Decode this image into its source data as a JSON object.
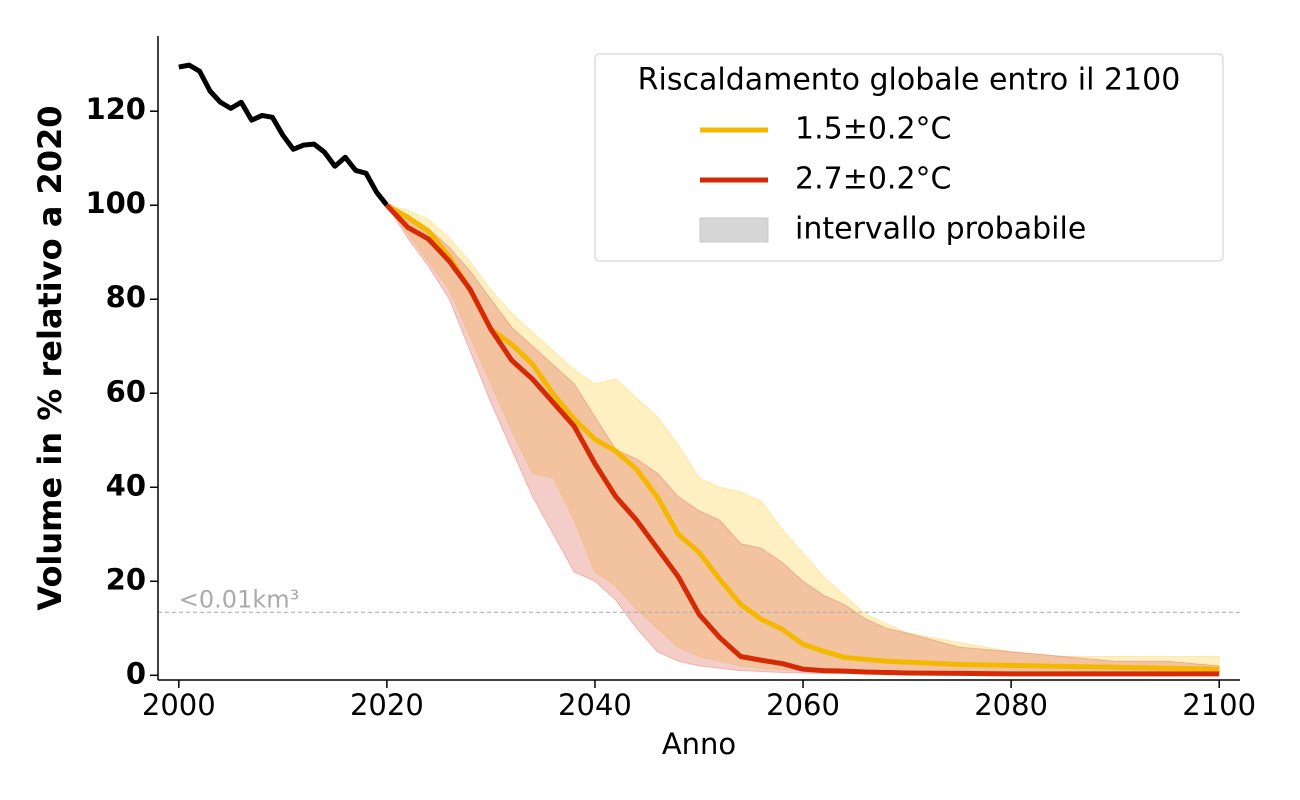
{
  "chart_data": {
    "type": "line",
    "xlabel": "Anno",
    "ylabel": "Volume in % relativo a 2020",
    "xlim": [
      1998,
      2102
    ],
    "ylim": [
      -1,
      136
    ],
    "xticks": [
      2000,
      2020,
      2040,
      2060,
      2080,
      2100
    ],
    "yticks": [
      0,
      20,
      40,
      60,
      80,
      100,
      120
    ],
    "legend": {
      "title": "Riscaldamento globale entro il 2100",
      "position": "upper right",
      "band_label": "intervallo probabile",
      "band_color": "#d6d6d6"
    },
    "hline": {
      "value": 13.4,
      "label": "<0.01km³",
      "color": "#aaaaaa"
    },
    "series": [
      {
        "color": "#000000",
        "x": [
          2000,
          2001,
          2002,
          2003,
          2004,
          2005,
          2006,
          2007,
          2008,
          2009,
          2010,
          2011,
          2012,
          2013,
          2014,
          2015,
          2016,
          2017,
          2018,
          2019,
          2020
        ],
        "values": [
          129.4,
          129.8,
          128.5,
          124.3,
          121.9,
          120.6,
          121.9,
          118.1,
          119.1,
          118.7,
          114.9,
          111.9,
          112.8,
          113,
          111.3,
          108.3,
          110.2,
          107.4,
          106.8,
          102.8,
          100
        ]
      },
      {
        "name": "1.5±0.2°C",
        "color": "#f5b800",
        "band_color": "#fcd34d",
        "x": [
          2020,
          2022,
          2024,
          2026,
          2028,
          2030,
          2032,
          2034,
          2036,
          2038,
          2040,
          2042,
          2044,
          2046,
          2048,
          2050,
          2052,
          2054,
          2056,
          2058,
          2060,
          2062,
          2064,
          2066,
          2068,
          2070,
          2075,
          2080,
          2085,
          2090,
          2095,
          2100
        ],
        "values": [
          100,
          97.4,
          94.5,
          89,
          82,
          73.6,
          70.4,
          66.2,
          59.8,
          54.5,
          50.2,
          47.7,
          43.8,
          37.9,
          30,
          26.2,
          20.4,
          15.1,
          11.9,
          9.8,
          6.6,
          5.1,
          3.8,
          3.4,
          3,
          2.8,
          2.3,
          2.1,
          1.9,
          1.7,
          1.5,
          1.3
        ],
        "upper": [
          100,
          99,
          97,
          93,
          88,
          82,
          77,
          73,
          69,
          65,
          62,
          63,
          59,
          55,
          49,
          42,
          40,
          39,
          37,
          31,
          26,
          21,
          17,
          13,
          11,
          9,
          7,
          5,
          4,
          4,
          4,
          4
        ],
        "lower": [
          100,
          94,
          88,
          82,
          72,
          62,
          52,
          43,
          42,
          33,
          22,
          19,
          14,
          10,
          6,
          4,
          3,
          2,
          1.5,
          1.2,
          1,
          0.8,
          0.7,
          0.6,
          0.5,
          0.5,
          0.4,
          0.4,
          0.4,
          0.4,
          0.4,
          0.4
        ]
      },
      {
        "name": "2.7±0.2°C",
        "color": "#d62a06",
        "band_color": "#e07060",
        "x": [
          2020,
          2022,
          2024,
          2026,
          2028,
          2030,
          2032,
          2034,
          2036,
          2038,
          2040,
          2042,
          2044,
          2046,
          2048,
          2050,
          2052,
          2054,
          2056,
          2058,
          2060,
          2062,
          2064,
          2066,
          2068,
          2070,
          2075,
          2080,
          2085,
          2090,
          2095,
          2100
        ],
        "values": [
          100,
          95.3,
          92.8,
          88.1,
          82.1,
          73.6,
          67,
          63,
          58,
          53,
          45,
          38,
          33,
          27,
          21,
          13,
          8,
          4,
          3.2,
          2.5,
          1.3,
          1,
          0.9,
          0.7,
          0.6,
          0.5,
          0.4,
          0.3,
          0.3,
          0.3,
          0.3,
          0.3
        ],
        "upper": [
          100,
          98,
          95,
          91,
          86,
          80,
          74,
          70,
          66,
          62,
          55,
          48,
          46,
          43,
          38,
          35,
          33,
          28,
          27,
          24,
          20,
          17,
          15,
          12,
          10,
          9,
          6,
          5,
          4,
          3,
          3,
          2
        ],
        "lower": [
          100,
          93,
          87,
          80,
          69,
          58,
          48,
          38,
          30,
          22,
          20,
          16,
          10,
          5,
          3,
          2,
          1.5,
          1,
          0.8,
          0.6,
          0.5,
          0.4,
          0.4,
          0.3,
          0.3,
          0.3,
          0.2,
          0.2,
          0.2,
          0.2,
          0.2,
          0.2
        ]
      }
    ]
  }
}
